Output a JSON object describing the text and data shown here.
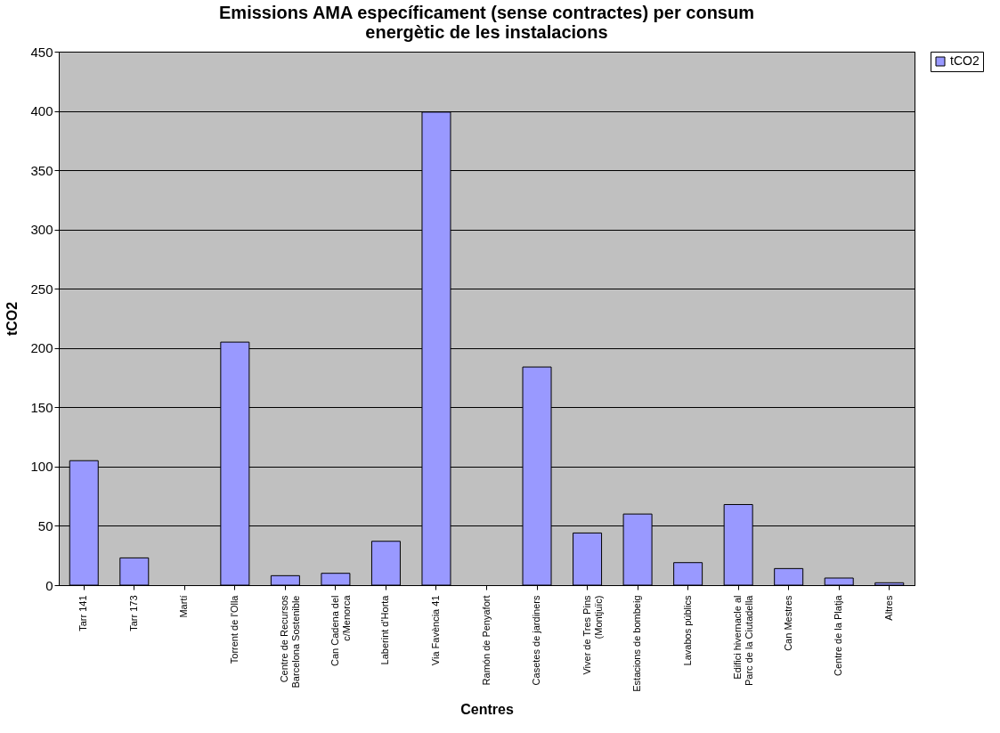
{
  "chart_data": {
    "type": "bar",
    "title": "Emissions AMA específicament (sense contractes) per consum energètic de les instalacions",
    "xlabel": "Centres",
    "ylabel": "tCO2",
    "categories": [
      "Tarr 141",
      "Tarr 173",
      "Martí",
      "Torrent de l'Olla",
      "Centre de Recursos Barcelona Sostenible",
      "Can Cadena del c/Menorca",
      "Laberint d'Horta",
      "Via Favència 41",
      "Ramón de Penyafort",
      "Casetes de jardiners",
      "Viver de Tres Pins (Montjuïc)",
      "Estacions de bombeig",
      "Lavabos públics",
      "Edifici hivernacle al Parc de la Ciutadella",
      "Can Mestres",
      "Centre de la Platja",
      "Altres"
    ],
    "series": [
      {
        "name": "tCO2",
        "color": "#9999ff",
        "values": [
          105,
          23,
          null,
          205,
          8,
          10,
          37,
          399,
          null,
          184,
          44,
          60,
          19,
          68,
          14,
          6,
          2
        ]
      }
    ],
    "ylim": [
      0,
      450
    ],
    "yticks": [
      0,
      50,
      100,
      150,
      200,
      250,
      300,
      350,
      400,
      450
    ],
    "grid": "y",
    "legend": "right"
  }
}
